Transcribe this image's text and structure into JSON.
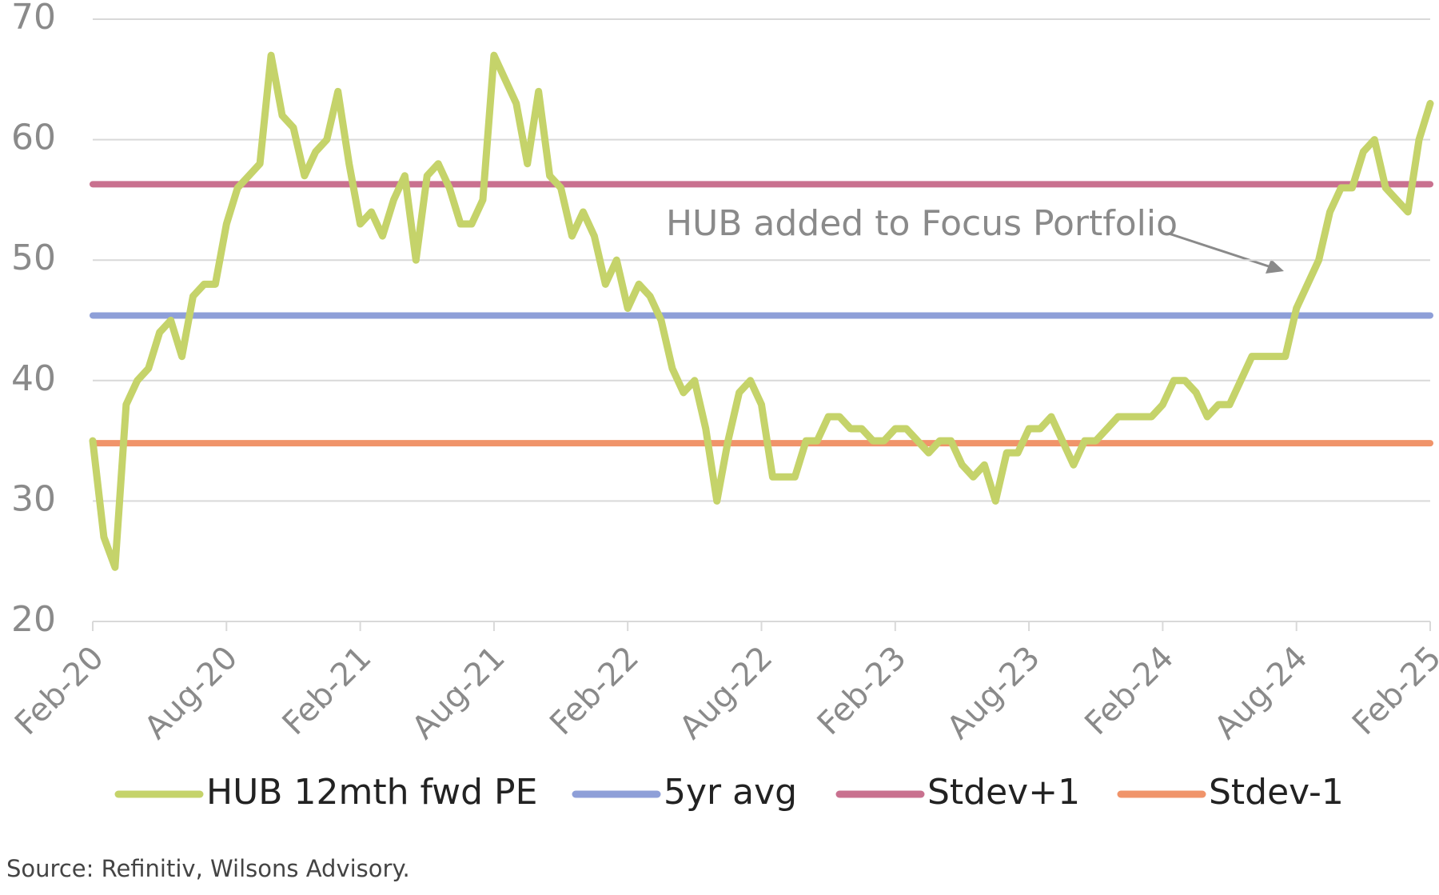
{
  "chart_data": {
    "type": "line",
    "series": [
      {
        "name": "HUB 12mth fwd PE",
        "color": "#c5d36a",
        "x": [
          0,
          0.5,
          1,
          1.5,
          2,
          2.5,
          3,
          3.5,
          4,
          4.5,
          5,
          5.5,
          6,
          6.5,
          7,
          7.5,
          8,
          8.5,
          9,
          9.5,
          10,
          10.5,
          11,
          11.5,
          12,
          12.5,
          13,
          13.5,
          14,
          14.5,
          15,
          15.5,
          16,
          16.5,
          17,
          17.5,
          18,
          18.5,
          19,
          19.5,
          20,
          20.5,
          21,
          21.5,
          22,
          22.5,
          23,
          23.5,
          24,
          24.5,
          25,
          25.5,
          26,
          26.5,
          27,
          27.5,
          28,
          28.5,
          29,
          29.5,
          30,
          30.5,
          31,
          31.5,
          32,
          32.5,
          33,
          33.5,
          34,
          34.5,
          35,
          35.5,
          36,
          36.5,
          37,
          37.5,
          38,
          38.5,
          39,
          39.5,
          40,
          40.5,
          41,
          41.5,
          42,
          42.5,
          43,
          43.5,
          44,
          44.5,
          45,
          45.5,
          46,
          46.5,
          47,
          47.5,
          48,
          48.5,
          49,
          49.5,
          50,
          50.5,
          51,
          51.5,
          52,
          52.5,
          53,
          53.5,
          54,
          54.5,
          55,
          55.5,
          56,
          56.5,
          57,
          57.5,
          58,
          58.5,
          59,
          59.5,
          60
        ],
        "values": [
          35,
          27,
          24.5,
          38,
          40,
          41,
          44,
          45,
          42,
          47,
          48,
          48,
          53,
          56,
          57,
          58,
          67,
          62,
          61,
          57,
          59,
          60,
          64,
          58,
          53,
          54,
          52,
          55,
          57,
          50,
          57,
          58,
          56,
          53,
          53,
          55,
          67,
          65,
          63,
          58,
          64,
          57,
          56,
          52,
          54,
          52,
          48,
          50,
          46,
          48,
          47,
          45,
          41,
          39,
          40,
          36,
          30,
          35,
          39,
          40,
          38,
          32,
          32,
          32,
          35,
          35,
          37,
          37,
          36,
          36,
          35,
          35,
          36,
          36,
          35,
          34,
          35,
          35,
          33,
          32,
          33,
          30,
          34,
          34,
          36,
          36,
          37,
          35,
          33,
          35,
          35,
          36,
          37,
          37,
          37,
          37,
          38,
          40,
          40,
          39,
          37,
          38,
          38,
          40,
          42,
          42,
          42,
          42,
          46,
          48,
          50,
          54,
          56,
          56,
          59,
          60,
          56,
          55,
          54,
          60,
          63
        ]
      },
      {
        "name": "5yr avg",
        "color": "#8e9fd8",
        "x": [
          0,
          60
        ],
        "values": [
          45.4,
          45.4
        ]
      },
      {
        "name": "Stdev+1",
        "color": "#c9718f",
        "x": [
          0,
          60
        ],
        "values": [
          56.3,
          56.3
        ]
      },
      {
        "name": "Stdev-1",
        "color": "#f0946a",
        "x": [
          0,
          60
        ],
        "values": [
          34.8,
          34.8
        ]
      }
    ],
    "xlim": [
      0,
      60
    ],
    "xticks": [
      {
        "value": 0,
        "label": "Feb-20"
      },
      {
        "value": 6,
        "label": "Aug-20"
      },
      {
        "value": 12,
        "label": "Feb-21"
      },
      {
        "value": 18,
        "label": "Aug-21"
      },
      {
        "value": 24,
        "label": "Feb-22"
      },
      {
        "value": 30,
        "label": "Aug-22"
      },
      {
        "value": 36,
        "label": "Feb-23"
      },
      {
        "value": 42,
        "label": "Aug-23"
      },
      {
        "value": 48,
        "label": "Feb-24"
      },
      {
        "value": 54,
        "label": "Aug-24"
      },
      {
        "value": 60,
        "label": "Feb-25"
      }
    ],
    "ylim": [
      20,
      70
    ],
    "yticks": [
      20,
      30,
      40,
      50,
      60,
      70
    ],
    "grid": true,
    "annotation": "HUB added to Focus Portfolio",
    "source": "Source: Refinitiv, Wilsons Advisory."
  }
}
